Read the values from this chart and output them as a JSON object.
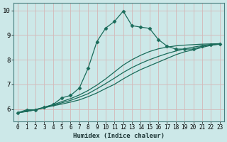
{
  "xlabel": "Humidex (Indice chaleur)",
  "bg_color": "#cce8e8",
  "grid_color": "#d4b8b8",
  "line_color": "#1a6b5a",
  "xlim": [
    -0.5,
    23.5
  ],
  "ylim": [
    5.5,
    10.3
  ],
  "xticks": [
    0,
    1,
    2,
    3,
    4,
    5,
    6,
    7,
    8,
    9,
    10,
    11,
    12,
    13,
    14,
    15,
    16,
    17,
    18,
    19,
    20,
    21,
    22,
    23
  ],
  "yticks": [
    6,
    7,
    8,
    9,
    10
  ],
  "series": [
    [
      5.85,
      5.97,
      5.97,
      6.07,
      6.18,
      6.45,
      6.55,
      6.85,
      7.65,
      8.73,
      9.28,
      9.55,
      9.97,
      9.38,
      9.32,
      9.27,
      8.82,
      8.55,
      8.43,
      8.43,
      8.43,
      8.55,
      8.6,
      8.63
    ],
    [
      5.85,
      5.9,
      5.97,
      6.05,
      6.13,
      6.2,
      6.28,
      6.37,
      6.5,
      6.65,
      6.83,
      7.0,
      7.22,
      7.42,
      7.6,
      7.75,
      7.9,
      8.05,
      8.2,
      8.32,
      8.4,
      8.5,
      8.58,
      8.63
    ],
    [
      5.85,
      5.9,
      5.97,
      6.05,
      6.15,
      6.25,
      6.35,
      6.48,
      6.62,
      6.82,
      7.03,
      7.25,
      7.48,
      7.68,
      7.85,
      8.0,
      8.13,
      8.25,
      8.35,
      8.44,
      8.51,
      8.57,
      8.62,
      8.65
    ],
    [
      5.85,
      5.92,
      5.98,
      6.07,
      6.17,
      6.3,
      6.42,
      6.57,
      6.75,
      6.97,
      7.22,
      7.5,
      7.78,
      8.0,
      8.18,
      8.33,
      8.44,
      8.51,
      8.56,
      8.59,
      8.61,
      8.63,
      8.64,
      8.65
    ]
  ],
  "marker": "D",
  "marker_size": 2.5,
  "line_width": 0.9,
  "tick_fontsize": 5.5,
  "xlabel_fontsize": 6.5
}
